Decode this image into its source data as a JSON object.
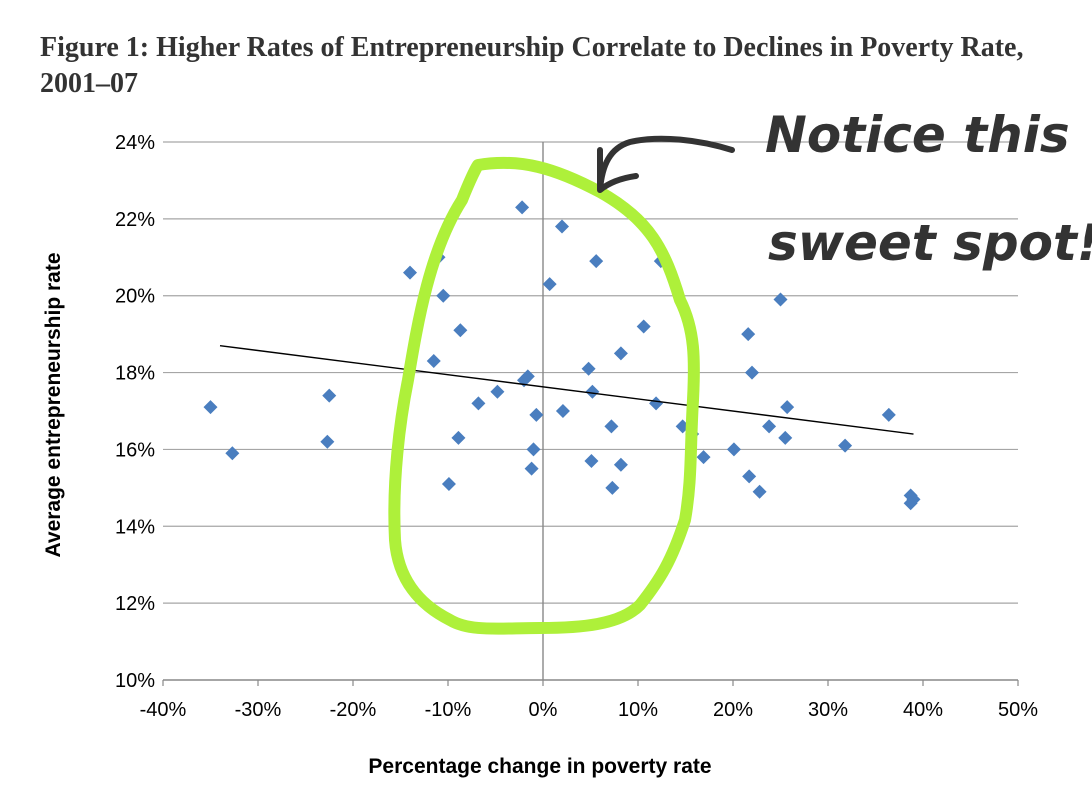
{
  "chart_data": {
    "type": "scatter",
    "title": "Figure 1: Higher Rates of Entrepreneurship Correlate to Declines in Poverty Rate, 2001–07",
    "xlabel": "Percentage change in poverty rate",
    "ylabel": "Average entrepreneurship rate",
    "xlim": [
      -40,
      50
    ],
    "ylim": [
      10,
      24
    ],
    "x_ticks": [
      "-40%",
      "-30%",
      "-20%",
      "-10%",
      "0%",
      "10%",
      "20%",
      "30%",
      "40%",
      "50%"
    ],
    "y_ticks": [
      "10%",
      "12%",
      "14%",
      "16%",
      "18%",
      "20%",
      "22%",
      "24%"
    ],
    "grid": "horizontal",
    "marker_color": "#4a7ebf",
    "points": [
      {
        "x": -35,
        "y": 17.1
      },
      {
        "x": -32.7,
        "y": 15.9
      },
      {
        "x": -22.5,
        "y": 17.4
      },
      {
        "x": -22.7,
        "y": 16.2
      },
      {
        "x": -14,
        "y": 20.6
      },
      {
        "x": -11,
        "y": 21.0
      },
      {
        "x": -10.5,
        "y": 20.0
      },
      {
        "x": -11.5,
        "y": 18.3
      },
      {
        "x": -8.7,
        "y": 19.1
      },
      {
        "x": -8.9,
        "y": 16.3
      },
      {
        "x": -9.9,
        "y": 15.1
      },
      {
        "x": -6.8,
        "y": 17.2
      },
      {
        "x": -4.8,
        "y": 17.5
      },
      {
        "x": -2.2,
        "y": 22.3
      },
      {
        "x": -2.0,
        "y": 17.8
      },
      {
        "x": -1.6,
        "y": 17.9
      },
      {
        "x": -0.7,
        "y": 16.9
      },
      {
        "x": -1.0,
        "y": 16.0
      },
      {
        "x": -1.2,
        "y": 15.5
      },
      {
        "x": 0.7,
        "y": 20.3
      },
      {
        "x": 2.0,
        "y": 21.8
      },
      {
        "x": 2.1,
        "y": 17.0
      },
      {
        "x": 4.8,
        "y": 18.1
      },
      {
        "x": 5.2,
        "y": 17.5
      },
      {
        "x": 5.6,
        "y": 20.9
      },
      {
        "x": 5.1,
        "y": 15.7
      },
      {
        "x": 7.2,
        "y": 16.6
      },
      {
        "x": 8.2,
        "y": 18.5
      },
      {
        "x": 8.2,
        "y": 15.6
      },
      {
        "x": 7.3,
        "y": 15.0
      },
      {
        "x": 10.6,
        "y": 19.2
      },
      {
        "x": 11.9,
        "y": 17.2
      },
      {
        "x": 12.4,
        "y": 20.9
      },
      {
        "x": 14.7,
        "y": 16.6
      },
      {
        "x": 15.7,
        "y": 16.4
      },
      {
        "x": 16.9,
        "y": 15.8
      },
      {
        "x": 20.1,
        "y": 16.0
      },
      {
        "x": 21.6,
        "y": 19.0
      },
      {
        "x": 22.0,
        "y": 18.0
      },
      {
        "x": 21.7,
        "y": 15.3
      },
      {
        "x": 22.8,
        "y": 14.9
      },
      {
        "x": 23.8,
        "y": 16.6
      },
      {
        "x": 25.0,
        "y": 19.9
      },
      {
        "x": 25.5,
        "y": 16.3
      },
      {
        "x": 25.7,
        "y": 17.1
      },
      {
        "x": 31.8,
        "y": 16.1
      },
      {
        "x": 36.4,
        "y": 16.9
      },
      {
        "x": 38.7,
        "y": 14.8
      },
      {
        "x": 39.0,
        "y": 14.7
      },
      {
        "x": 38.7,
        "y": 14.6
      }
    ],
    "trendline": {
      "x": [
        -34,
        39
      ],
      "y": [
        18.7,
        16.4
      ]
    }
  },
  "annotation": {
    "line1": "Notice this",
    "line2": "sweet spot!",
    "highlight_color": "#aef03a",
    "ink_color": "#333333"
  }
}
